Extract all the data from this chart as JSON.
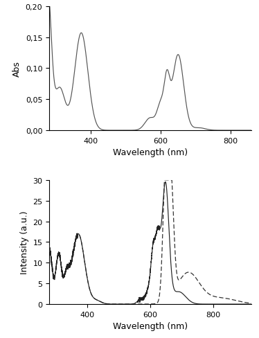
{
  "top": {
    "ylabel": "Abs",
    "xlabel": "Wavelength (nm)",
    "ylim": [
      0.0,
      0.2
    ],
    "xlim": [
      280,
      860
    ],
    "yticks": [
      0.0,
      0.05,
      0.1,
      0.15,
      0.2
    ],
    "xticks": [
      400,
      600,
      800
    ]
  },
  "bottom": {
    "ylabel": "Intensity (a.u.)",
    "xlabel": "Wavelength (nm)",
    "ylim": [
      0,
      30
    ],
    "xlim": [
      280,
      920
    ],
    "yticks": [
      0,
      5,
      10,
      15,
      20,
      25,
      30
    ],
    "xticks": [
      400,
      600,
      800
    ]
  }
}
